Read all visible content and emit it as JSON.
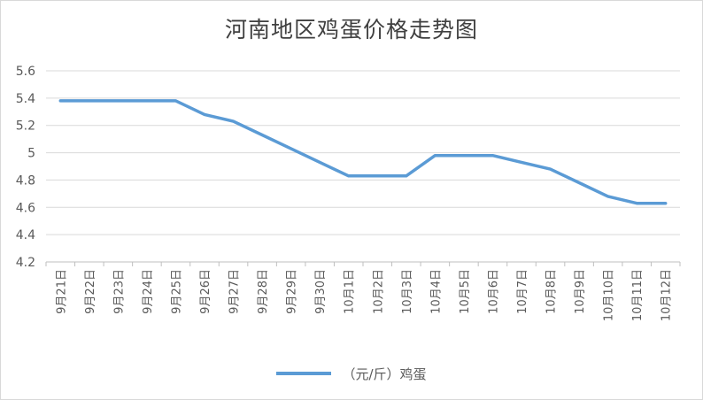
{
  "chart_data": {
    "type": "line",
    "title": "河南地区鸡蛋价格走势图",
    "xlabel": "",
    "ylabel": "",
    "ylim": [
      4.2,
      5.6
    ],
    "yticks": [
      "4.2",
      "4.4",
      "4.6",
      "4.8",
      "5",
      "5.2",
      "5.4",
      "5.6"
    ],
    "grid": true,
    "legend_position": "bottom",
    "categories": [
      "9月21日",
      "9月22日",
      "9月23日",
      "9月24日",
      "9月25日",
      "9月26日",
      "9月27日",
      "9月28日",
      "9月29日",
      "9月30日",
      "10月1日",
      "10月2日",
      "10月3日",
      "10月4日",
      "10月5日",
      "10月6日",
      "10月7日",
      "10月8日",
      "10月9日",
      "10月10日",
      "10月11日",
      "10月12日"
    ],
    "series": [
      {
        "name": "（元/斤）鸡蛋",
        "color": "#5b9bd5",
        "values": [
          5.38,
          5.38,
          5.38,
          5.38,
          5.38,
          5.28,
          5.23,
          5.13,
          5.03,
          4.93,
          4.83,
          4.83,
          4.83,
          4.98,
          4.98,
          4.98,
          4.93,
          4.88,
          4.78,
          4.68,
          4.63,
          4.63
        ]
      }
    ]
  }
}
